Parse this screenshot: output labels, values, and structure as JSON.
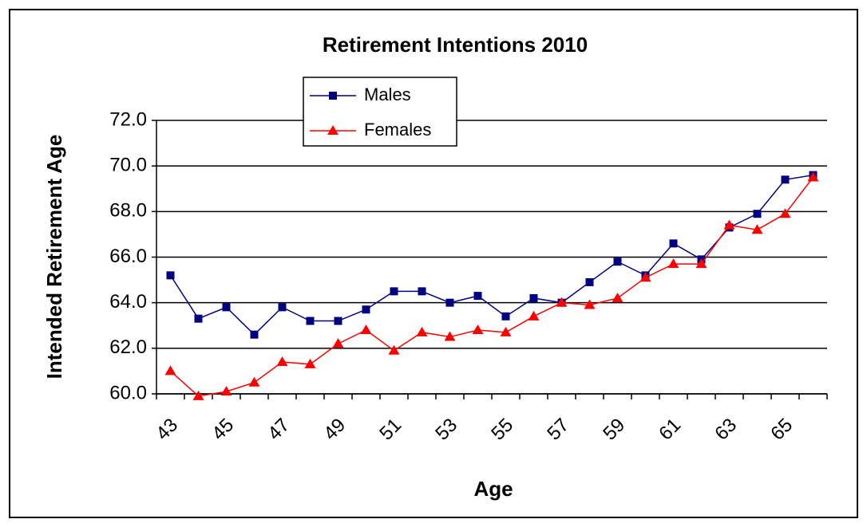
{
  "chart_data": {
    "type": "line",
    "title": "Retirement Intentions 2010",
    "x_label": "Age",
    "y_label": "Intended Retirement Age",
    "categories": [
      "43",
      null,
      "45",
      null,
      "47",
      null,
      "49",
      null,
      "51",
      null,
      "53",
      null,
      "55",
      null,
      "57",
      null,
      "59",
      null,
      "61",
      null,
      "63",
      null,
      "65",
      null
    ],
    "series": [
      {
        "name": "Males",
        "color": "#000080",
        "marker": "square",
        "values": [
          65.2,
          63.3,
          63.8,
          62.6,
          63.8,
          63.2,
          63.2,
          63.7,
          64.5,
          64.5,
          64.0,
          64.3,
          63.4,
          64.2,
          64.0,
          64.9,
          65.8,
          65.2,
          66.6,
          65.9,
          67.3,
          67.9,
          69.4,
          69.6
        ]
      },
      {
        "name": "Females",
        "color": "#ff0000",
        "marker": "triangle",
        "values": [
          61.0,
          59.9,
          60.1,
          60.5,
          61.4,
          61.3,
          62.2,
          62.8,
          61.9,
          62.7,
          62.5,
          62.8,
          62.7,
          63.4,
          64.0,
          63.9,
          64.2,
          65.1,
          65.7,
          65.7,
          67.4,
          67.2,
          67.9,
          69.5
        ]
      }
    ],
    "ylim": [
      60,
      72
    ],
    "yticks": [
      {
        "value": 60,
        "label": "60.0"
      },
      {
        "value": 62,
        "label": "62.0"
      },
      {
        "value": 64,
        "label": "64.0"
      },
      {
        "value": 66,
        "label": "66.0"
      },
      {
        "value": 68,
        "label": "68.0"
      },
      {
        "value": 70,
        "label": "70.0"
      },
      {
        "value": 72,
        "label": "72.0"
      }
    ],
    "grid": true
  }
}
